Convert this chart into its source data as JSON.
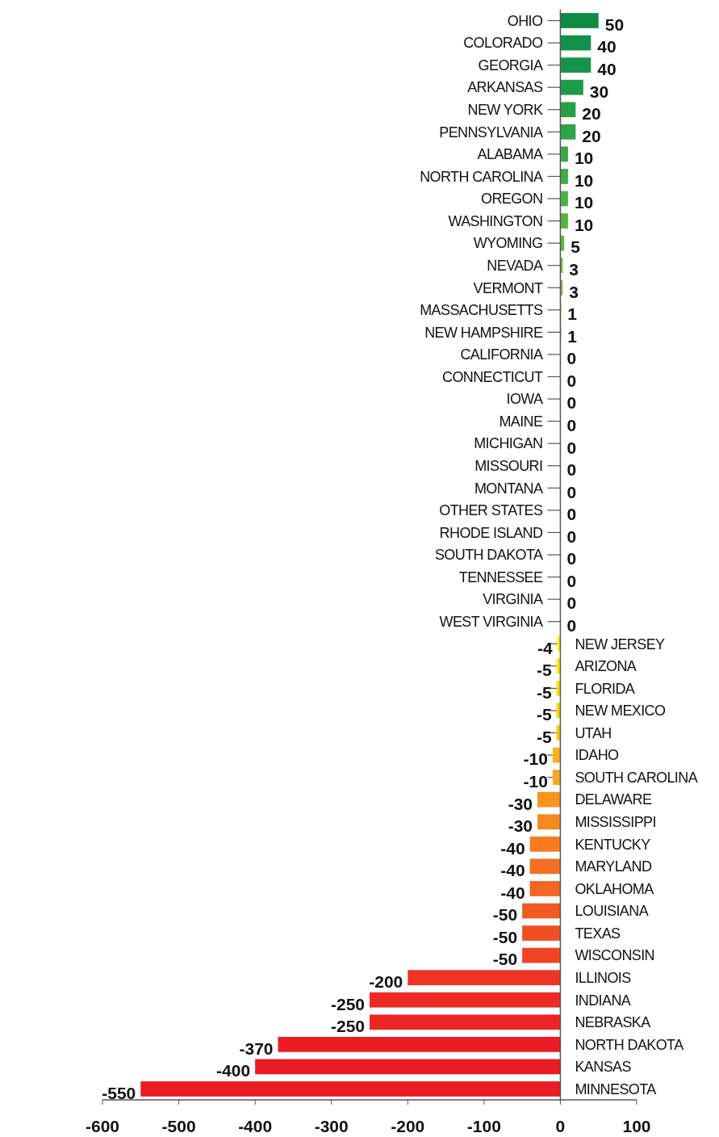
{
  "chart_data": {
    "type": "bar",
    "orientation": "horizontal",
    "categories": [
      "OHIO",
      "COLORADO",
      "GEORGIA",
      "ARKANSAS",
      "NEW YORK",
      "PENNSYLVANIA",
      "ALABAMA",
      "NORTH CAROLINA",
      "OREGON",
      "WASHINGTON",
      "WYOMING",
      "NEVADA",
      "VERMONT",
      "MASSACHUSETTS",
      "NEW HAMPSHIRE",
      "CALIFORNIA",
      "CONNECTICUT",
      "IOWA",
      "MAINE",
      "MICHIGAN",
      "MISSOURI",
      "MONTANA",
      "OTHER STATES",
      "RHODE ISLAND",
      "SOUTH DAKOTA",
      "TENNESSEE",
      "VIRGINIA",
      "WEST VIRGINIA",
      "NEW JERSEY",
      "ARIZONA",
      "FLORIDA",
      "NEW MEXICO",
      "UTAH",
      "IDAHO",
      "SOUTH CAROLINA",
      "DELAWARE",
      "MISSISSIPPI",
      "KENTUCKY",
      "MARYLAND",
      "OKLAHOMA",
      "LOUISIANA",
      "TEXAS",
      "WISCONSIN",
      "ILLINOIS",
      "INDIANA",
      "NEBRASKA",
      "NORTH DAKOTA",
      "KANSAS",
      "MINNESOTA"
    ],
    "values": [
      50,
      40,
      40,
      30,
      20,
      20,
      10,
      10,
      10,
      10,
      5,
      3,
      3,
      1,
      1,
      0,
      0,
      0,
      0,
      0,
      0,
      0,
      0,
      0,
      0,
      0,
      0,
      0,
      -4,
      -5,
      -5,
      -5,
      -5,
      -10,
      -10,
      -30,
      -30,
      -40,
      -40,
      -40,
      -50,
      -50,
      -50,
      -200,
      -250,
      -250,
      -370,
      -400,
      -550
    ],
    "colors": [
      "#0e8a45",
      "#13904a",
      "#16934a",
      "#1e9a48",
      "#27a046",
      "#2fa445",
      "#38a943",
      "#40ad42",
      "#4ab241",
      "#52b640",
      "#5cba3e",
      "#66bf3c",
      "#70c33b",
      "#7ac739",
      "#84cb38",
      "#8dc63f",
      "#8dc63f",
      "#8dc63f",
      "#8dc63f",
      "#8dc63f",
      "#8dc63f",
      "#8dc63f",
      "#8dc63f",
      "#8dc63f",
      "#8dc63f",
      "#8dc63f",
      "#8dc63f",
      "#8dc63f",
      "#fff200",
      "#ffe800",
      "#ffdd00",
      "#ffd200",
      "#ffc60b",
      "#fbb117",
      "#f9a61b",
      "#f7941d",
      "#f6891f",
      "#f47b20",
      "#f36f21",
      "#f26522",
      "#f15a22",
      "#f04e23",
      "#ef4423",
      "#ee3524",
      "#ed2b24",
      "#ec2424",
      "#eb1c24",
      "#ea1a23",
      "#e91b23"
    ],
    "xlim": [
      -600,
      100
    ],
    "xticks": [
      -600,
      -500,
      -400,
      -300,
      -200,
      -100,
      0,
      100
    ],
    "data_labels": true,
    "grid": false
  }
}
